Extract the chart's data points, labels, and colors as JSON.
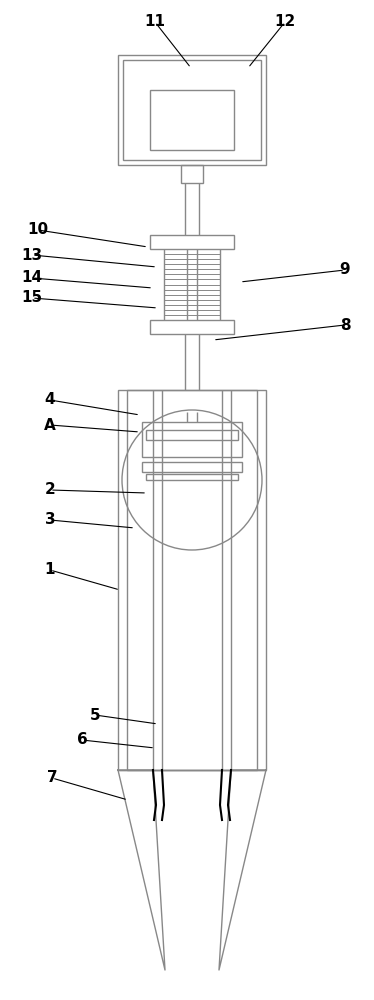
{
  "bg_color": "#ffffff",
  "lc": "#aaaaaa",
  "lc2": "#888888",
  "lk": "#000000",
  "lw": 1.0,
  "lw_thin": 0.7,
  "lw_thick": 1.5,
  "label_fontsize": 11,
  "figsize": [
    3.74,
    10.0
  ],
  "dpi": 100,
  "labels": [
    [
      "11",
      155,
      22,
      191,
      68
    ],
    [
      "12",
      285,
      22,
      248,
      68
    ],
    [
      "10",
      38,
      230,
      148,
      247
    ],
    [
      "13",
      32,
      255,
      157,
      267
    ],
    [
      "14",
      32,
      278,
      153,
      288
    ],
    [
      "15",
      32,
      298,
      158,
      308
    ],
    [
      "9",
      345,
      270,
      240,
      282
    ],
    [
      "8",
      345,
      325,
      213,
      340
    ],
    [
      "4",
      50,
      400,
      140,
      415
    ],
    [
      "A",
      50,
      425,
      140,
      432
    ],
    [
      "2",
      50,
      490,
      147,
      493
    ],
    [
      "3",
      50,
      520,
      135,
      528
    ],
    [
      "1",
      50,
      570,
      120,
      590
    ],
    [
      "5",
      95,
      715,
      158,
      724
    ],
    [
      "6",
      82,
      740,
      155,
      748
    ],
    [
      "7",
      52,
      778,
      128,
      800
    ]
  ]
}
